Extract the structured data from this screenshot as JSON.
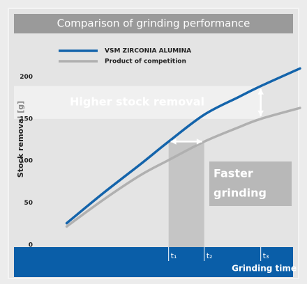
{
  "chart_data": {
    "type": "line",
    "title": "Comparison of grinding performance",
    "y_label": "Stock removal [g]",
    "x_label": "Grinding time",
    "x": [
      5,
      20,
      35,
      46.5,
      61,
      75,
      84,
      100
    ],
    "series": [
      {
        "name": "VSM ZIRCONIA ALUMINA",
        "color": "#1464ab",
        "values": [
          26,
          62,
          96,
          123,
          155,
          176,
          189,
          210
        ]
      },
      {
        "name": "Product of competition",
        "color": "#b0b0b0",
        "values": [
          22,
          54,
          83,
          101,
          123,
          140,
          150,
          163
        ]
      }
    ],
    "xlim": [
      0,
      100
    ],
    "ylim": [
      0,
      250
    ],
    "yticks": [
      0,
      50,
      100,
      150,
      200
    ],
    "xticks": [
      {
        "value": 46.5,
        "label": "t₁"
      },
      {
        "value": 61,
        "label": "t₂"
      },
      {
        "value": 84,
        "label": "t₃"
      }
    ],
    "annotations": [
      "Higher stock removal",
      "Faster",
      "grinding"
    ],
    "grid": false
  }
}
